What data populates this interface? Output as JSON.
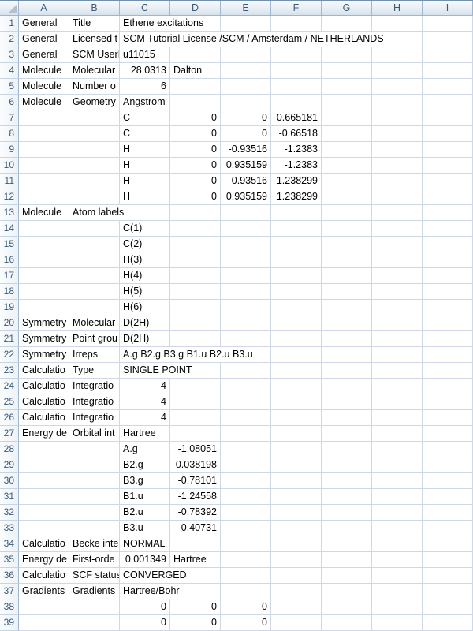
{
  "colors": {
    "top-line": "#6e8fae",
    "header-grad-top": "#f8fafc",
    "header-grad-mid": "#e6edf4",
    "header-grad-bottom": "#d7e1ec",
    "header-border": "#9eb6ce",
    "header-text": "#3b5a7a",
    "rowhdr-grad-left": "#fbfdfe",
    "rowhdr-grad-right": "#edf2f8",
    "rowhdr-separator": "#c8d4e1",
    "gridline": "#d0d7e5",
    "cell-text": "#000000",
    "triangle": "#b6c0cb"
  },
  "sheet": {
    "columns": [
      "A",
      "B",
      "C",
      "D",
      "E",
      "F",
      "G",
      "H",
      "I"
    ],
    "rows": [
      {
        "n": 1,
        "cells": [
          {
            "c": "A",
            "v": "General"
          },
          {
            "c": "B",
            "v": "Title"
          },
          {
            "c": "C",
            "v": "Ethene excitations",
            "spill": true
          }
        ]
      },
      {
        "n": 2,
        "cells": [
          {
            "c": "A",
            "v": "General"
          },
          {
            "c": "B",
            "v": "Licensed t"
          },
          {
            "c": "C",
            "v": "SCM Tutorial License /SCM / Amsterdam / NETHERLANDS",
            "spill": true
          }
        ]
      },
      {
        "n": 3,
        "cells": [
          {
            "c": "A",
            "v": "General"
          },
          {
            "c": "B",
            "v": "SCM UserI"
          },
          {
            "c": "C",
            "v": "u11015"
          }
        ]
      },
      {
        "n": 4,
        "cells": [
          {
            "c": "A",
            "v": "Molecule"
          },
          {
            "c": "B",
            "v": "Molecular"
          },
          {
            "c": "C",
            "v": "28.0313"
          },
          {
            "c": "D",
            "v": "Dalton"
          }
        ]
      },
      {
        "n": 5,
        "cells": [
          {
            "c": "A",
            "v": "Molecule"
          },
          {
            "c": "B",
            "v": "Number o"
          },
          {
            "c": "C",
            "v": "6"
          }
        ]
      },
      {
        "n": 6,
        "cells": [
          {
            "c": "A",
            "v": "Molecule"
          },
          {
            "c": "B",
            "v": "Geometry"
          },
          {
            "c": "C",
            "v": "Angstrom",
            "spill": true
          }
        ]
      },
      {
        "n": 7,
        "cells": [
          {
            "c": "C",
            "v": "C"
          },
          {
            "c": "D",
            "v": "0"
          },
          {
            "c": "E",
            "v": "0"
          },
          {
            "c": "F",
            "v": "0.665181"
          }
        ]
      },
      {
        "n": 8,
        "cells": [
          {
            "c": "C",
            "v": "C"
          },
          {
            "c": "D",
            "v": "0"
          },
          {
            "c": "E",
            "v": "0"
          },
          {
            "c": "F",
            "v": "-0.66518"
          }
        ]
      },
      {
        "n": 9,
        "cells": [
          {
            "c": "C",
            "v": "H"
          },
          {
            "c": "D",
            "v": "0"
          },
          {
            "c": "E",
            "v": "-0.93516"
          },
          {
            "c": "F",
            "v": "-1.2383"
          }
        ]
      },
      {
        "n": 10,
        "cells": [
          {
            "c": "C",
            "v": "H"
          },
          {
            "c": "D",
            "v": "0"
          },
          {
            "c": "E",
            "v": "0.935159"
          },
          {
            "c": "F",
            "v": "-1.2383"
          }
        ]
      },
      {
        "n": 11,
        "cells": [
          {
            "c": "C",
            "v": "H"
          },
          {
            "c": "D",
            "v": "0"
          },
          {
            "c": "E",
            "v": "-0.93516"
          },
          {
            "c": "F",
            "v": "1.238299"
          }
        ]
      },
      {
        "n": 12,
        "cells": [
          {
            "c": "C",
            "v": "H"
          },
          {
            "c": "D",
            "v": "0"
          },
          {
            "c": "E",
            "v": "0.935159"
          },
          {
            "c": "F",
            "v": "1.238299"
          }
        ]
      },
      {
        "n": 13,
        "cells": [
          {
            "c": "A",
            "v": "Molecule"
          },
          {
            "c": "B",
            "v": "Atom labels",
            "spill": true
          }
        ]
      },
      {
        "n": 14,
        "cells": [
          {
            "c": "C",
            "v": "C(1)"
          }
        ]
      },
      {
        "n": 15,
        "cells": [
          {
            "c": "C",
            "v": "C(2)"
          }
        ]
      },
      {
        "n": 16,
        "cells": [
          {
            "c": "C",
            "v": "H(3)"
          }
        ]
      },
      {
        "n": 17,
        "cells": [
          {
            "c": "C",
            "v": "H(4)"
          }
        ]
      },
      {
        "n": 18,
        "cells": [
          {
            "c": "C",
            "v": "H(5)"
          }
        ]
      },
      {
        "n": 19,
        "cells": [
          {
            "c": "C",
            "v": "H(6)"
          }
        ]
      },
      {
        "n": 20,
        "cells": [
          {
            "c": "A",
            "v": "Symmetry"
          },
          {
            "c": "B",
            "v": "Molecular"
          },
          {
            "c": "C",
            "v": "D(2H)"
          }
        ]
      },
      {
        "n": 21,
        "cells": [
          {
            "c": "A",
            "v": "Symmetry"
          },
          {
            "c": "B",
            "v": "Point grou"
          },
          {
            "c": "C",
            "v": "D(2H)"
          }
        ]
      },
      {
        "n": 22,
        "cells": [
          {
            "c": "A",
            "v": "Symmetry"
          },
          {
            "c": "B",
            "v": "Irreps"
          },
          {
            "c": "C",
            "v": "A.g B2.g B3.g B1.u B2.u B3.u",
            "spill": true
          }
        ]
      },
      {
        "n": 23,
        "cells": [
          {
            "c": "A",
            "v": "Calculatio"
          },
          {
            "c": "B",
            "v": "Type"
          },
          {
            "c": "C",
            "v": "SINGLE POINT",
            "spill": true
          }
        ]
      },
      {
        "n": 24,
        "cells": [
          {
            "c": "A",
            "v": "Calculatio"
          },
          {
            "c": "B",
            "v": "Integratio"
          },
          {
            "c": "C",
            "v": "4"
          }
        ]
      },
      {
        "n": 25,
        "cells": [
          {
            "c": "A",
            "v": "Calculatio"
          },
          {
            "c": "B",
            "v": "Integratio"
          },
          {
            "c": "C",
            "v": "4"
          }
        ]
      },
      {
        "n": 26,
        "cells": [
          {
            "c": "A",
            "v": "Calculatio"
          },
          {
            "c": "B",
            "v": "Integratio"
          },
          {
            "c": "C",
            "v": "4"
          }
        ]
      },
      {
        "n": 27,
        "cells": [
          {
            "c": "A",
            "v": "Energy de"
          },
          {
            "c": "B",
            "v": "Orbital int"
          },
          {
            "c": "C",
            "v": "Hartree"
          }
        ]
      },
      {
        "n": 28,
        "cells": [
          {
            "c": "C",
            "v": "A.g"
          },
          {
            "c": "D",
            "v": "-1.08051"
          }
        ]
      },
      {
        "n": 29,
        "cells": [
          {
            "c": "C",
            "v": "B2.g"
          },
          {
            "c": "D",
            "v": "0.038198"
          }
        ]
      },
      {
        "n": 30,
        "cells": [
          {
            "c": "C",
            "v": "B3.g"
          },
          {
            "c": "D",
            "v": "-0.78101"
          }
        ]
      },
      {
        "n": 31,
        "cells": [
          {
            "c": "C",
            "v": "B1.u"
          },
          {
            "c": "D",
            "v": "-1.24558"
          }
        ]
      },
      {
        "n": 32,
        "cells": [
          {
            "c": "C",
            "v": "B2.u"
          },
          {
            "c": "D",
            "v": "-0.78392"
          }
        ]
      },
      {
        "n": 33,
        "cells": [
          {
            "c": "C",
            "v": "B3.u"
          },
          {
            "c": "D",
            "v": "-0.40731"
          }
        ]
      },
      {
        "n": 34,
        "cells": [
          {
            "c": "A",
            "v": "Calculatio"
          },
          {
            "c": "B",
            "v": "Becke inte"
          },
          {
            "c": "C",
            "v": "NORMAL"
          }
        ]
      },
      {
        "n": 35,
        "cells": [
          {
            "c": "A",
            "v": "Energy de"
          },
          {
            "c": "B",
            "v": "First-orde"
          },
          {
            "c": "C",
            "v": "0.001349"
          },
          {
            "c": "D",
            "v": "Hartree"
          }
        ]
      },
      {
        "n": 36,
        "cells": [
          {
            "c": "A",
            "v": "Calculatio"
          },
          {
            "c": "B",
            "v": "SCF status"
          },
          {
            "c": "C",
            "v": "CONVERGED",
            "spill": true
          }
        ]
      },
      {
        "n": 37,
        "cells": [
          {
            "c": "A",
            "v": "Gradients"
          },
          {
            "c": "B",
            "v": "Gradients"
          },
          {
            "c": "C",
            "v": "Hartree/Bohr",
            "spill": true
          }
        ]
      },
      {
        "n": 38,
        "cells": [
          {
            "c": "C",
            "v": "0"
          },
          {
            "c": "D",
            "v": "0"
          },
          {
            "c": "E",
            "v": "0"
          }
        ]
      },
      {
        "n": 39,
        "cells": [
          {
            "c": "C",
            "v": "0"
          },
          {
            "c": "D",
            "v": "0"
          },
          {
            "c": "E",
            "v": "0"
          }
        ]
      }
    ]
  }
}
